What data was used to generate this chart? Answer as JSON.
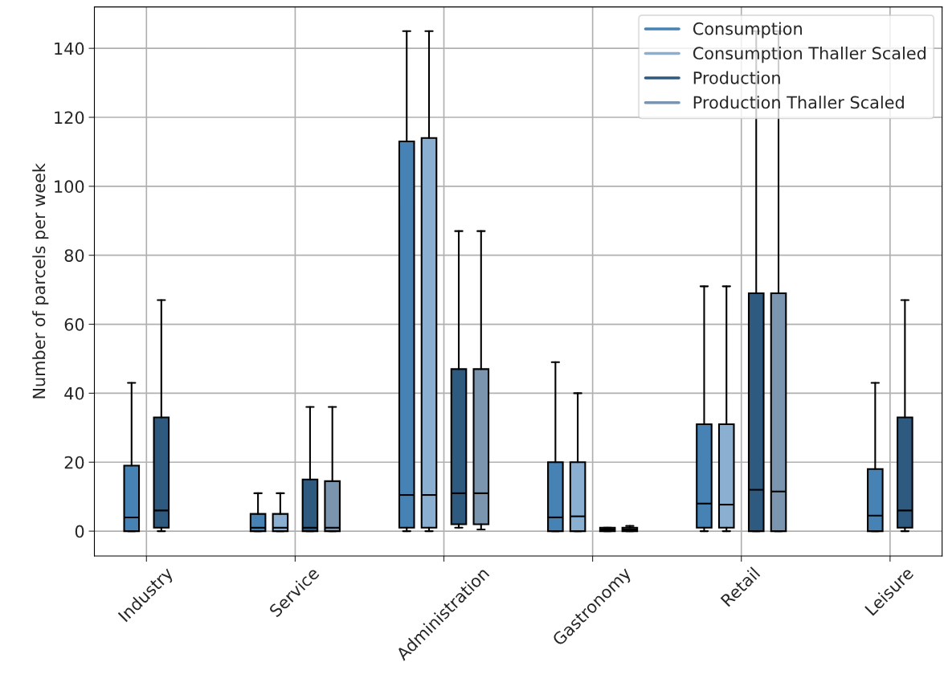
{
  "chart_data": {
    "type": "box",
    "ylabel": "Number of parcels per week",
    "categories": [
      "Industry",
      "Service",
      "Administration",
      "Gastronomy",
      "Retail",
      "Leisure"
    ],
    "ylim": [
      -7.2,
      152
    ],
    "yticks": [
      0,
      20,
      40,
      60,
      80,
      100,
      120,
      140
    ],
    "grid": true,
    "legend": "top right",
    "series": [
      {
        "name": "Consumption",
        "color": "#4682b4",
        "boxes": [
          {
            "low": 0,
            "q1": 0,
            "median": 4,
            "q3": 19,
            "high": 43
          },
          {
            "low": 0,
            "q1": 0,
            "median": 1,
            "q3": 5,
            "high": 11
          },
          {
            "low": 0,
            "q1": 1,
            "median": 10.5,
            "q3": 113,
            "high": 145
          },
          {
            "low": 0,
            "q1": 0,
            "median": 4,
            "q3": 20,
            "high": 49
          },
          {
            "low": 0,
            "q1": 1,
            "median": 8,
            "q3": 31,
            "high": 71
          },
          {
            "low": 0,
            "q1": 0,
            "median": 4.5,
            "q3": 18,
            "high": 43
          }
        ]
      },
      {
        "name": "Consumption Thaller Scaled",
        "color": "#8aafd0",
        "boxes": [
          null,
          {
            "low": 0,
            "q1": 0,
            "median": 1,
            "q3": 5,
            "high": 11
          },
          {
            "low": 0,
            "q1": 1,
            "median": 10.5,
            "q3": 114,
            "high": 145
          },
          {
            "low": 0,
            "q1": 0,
            "median": 4.3,
            "q3": 20,
            "high": 40
          },
          {
            "low": 0,
            "q1": 1,
            "median": 7.7,
            "q3": 31,
            "high": 71
          },
          null
        ]
      },
      {
        "name": "Production",
        "color": "#2f5a80",
        "boxes": [
          {
            "low": 0,
            "q1": 1,
            "median": 6,
            "q3": 33,
            "high": 67
          },
          {
            "low": 0,
            "q1": 0,
            "median": 1,
            "q3": 15,
            "high": 36
          },
          {
            "low": 1,
            "q1": 2,
            "median": 11,
            "q3": 47,
            "high": 87
          },
          {
            "low": 0,
            "q1": 0,
            "median": 0.5,
            "q3": 1,
            "high": 1
          },
          {
            "low": 0,
            "q1": 0,
            "median": 12,
            "q3": 69,
            "high": 145
          },
          {
            "low": 0,
            "q1": 1,
            "median": 6,
            "q3": 33,
            "high": 67
          }
        ]
      },
      {
        "name": "Production Thaller Scaled",
        "color": "#7a95ad",
        "boxes": [
          null,
          {
            "low": 0,
            "q1": 0,
            "median": 1,
            "q3": 14.5,
            "high": 36
          },
          {
            "low": 0.5,
            "q1": 2,
            "median": 11,
            "q3": 47,
            "high": 87
          },
          {
            "low": 0,
            "q1": 0,
            "median": 0.5,
            "q3": 1,
            "high": 1.5
          },
          {
            "low": 0,
            "q1": 0,
            "median": 11.5,
            "q3": 69,
            "high": 145
          },
          null
        ]
      }
    ]
  }
}
